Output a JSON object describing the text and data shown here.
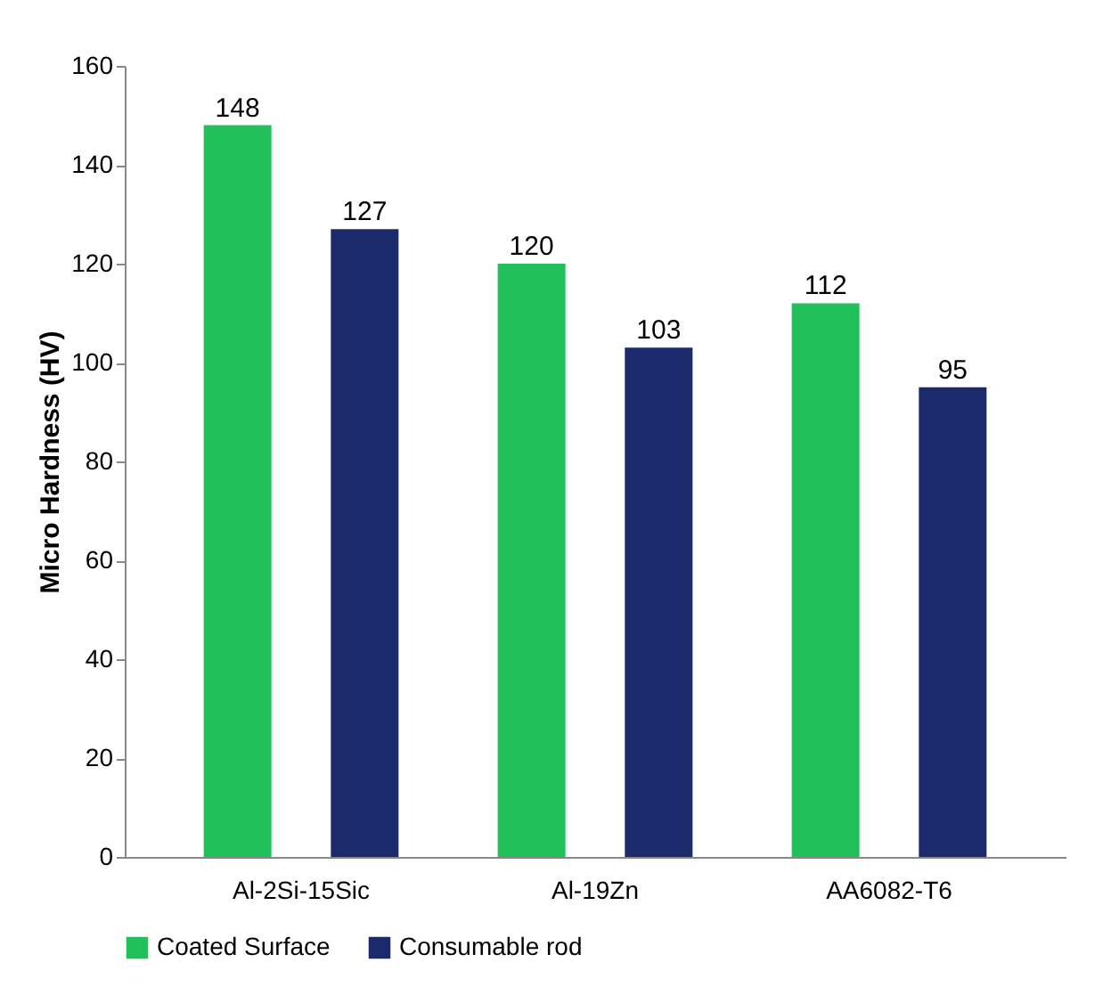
{
  "chart_data": {
    "type": "bar",
    "ylabel": "Micro Hardness (HV)",
    "categories": [
      "Al-2Si-15Sic",
      "Al-19Zn",
      "AA6082-T6"
    ],
    "series": [
      {
        "name": "Coated Surface",
        "color": "#22c05a",
        "values": [
          148,
          120,
          112
        ]
      },
      {
        "name": "Consumable rod",
        "color": "#1b2a6b",
        "values": [
          127,
          103,
          95
        ]
      }
    ],
    "ylim": [
      0,
      160
    ],
    "yticks": [
      0,
      20,
      40,
      60,
      80,
      100,
      120,
      140,
      160
    ],
    "data_labels": true,
    "legend": "bottom",
    "grid": false
  }
}
